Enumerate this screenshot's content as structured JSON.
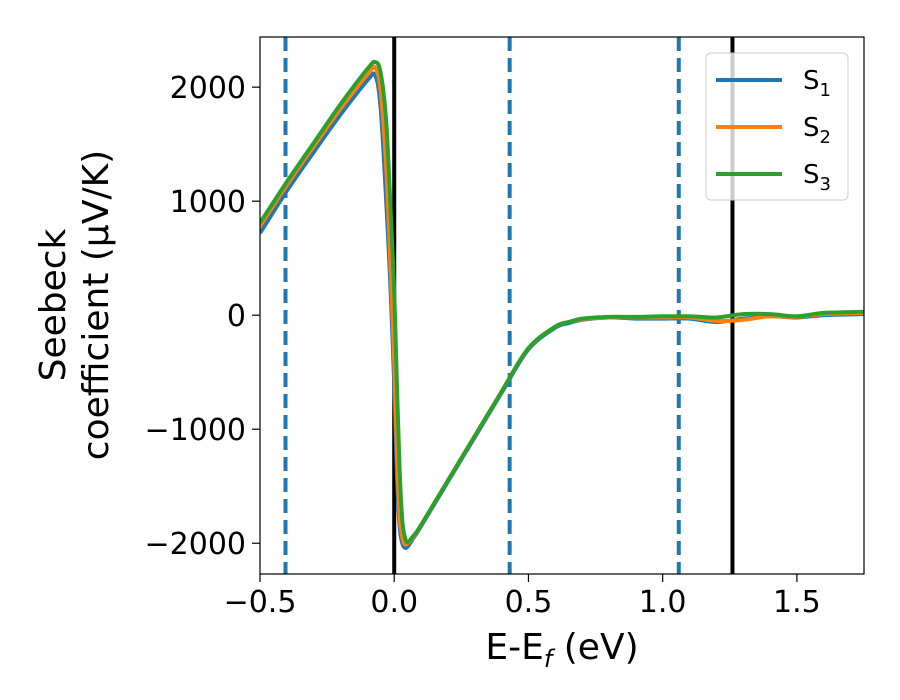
{
  "chart_data": {
    "type": "line",
    "xlabel_main": "E-E",
    "xlabel_sub": "f",
    "xlabel_unit": " (eV)",
    "ylabel_line1": "Seebeck",
    "ylabel_line2": "coefficient  (μV/K)",
    "xlim": [
      -0.5,
      1.75
    ],
    "ylim": [
      -2270,
      2440
    ],
    "xticks": [
      -0.5,
      0.0,
      0.5,
      1.0,
      1.5
    ],
    "xtick_labels": [
      "−0.5",
      "0.0",
      "0.5",
      "1.0",
      "1.5"
    ],
    "yticks": [
      2000,
      1000,
      0,
      -1000,
      -2000
    ],
    "ytick_labels": [
      "2000",
      "1000",
      "0",
      "−1000",
      "−2000"
    ],
    "vlines_solid": [
      0.0,
      1.26
    ],
    "vlines_dashed": [
      -0.405,
      0.43,
      1.06
    ],
    "legend_position": "top-right",
    "series": [
      {
        "name": "S",
        "subscript": "1",
        "color": "#1f77b4",
        "x": [
          -0.5,
          -0.4,
          -0.3,
          -0.2,
          -0.1,
          -0.07,
          -0.05,
          -0.03,
          -0.015,
          0.0,
          0.01,
          0.02,
          0.03,
          0.04,
          0.05,
          0.07,
          0.1,
          0.2,
          0.3,
          0.4,
          0.5,
          0.6,
          0.65,
          0.7,
          0.8,
          0.9,
          1.0,
          1.1,
          1.2,
          1.3,
          1.4,
          1.5,
          1.6,
          1.75
        ],
        "y": [
          720,
          1090,
          1430,
          1760,
          2060,
          2100,
          1800,
          1000,
          300,
          -600,
          -1400,
          -1850,
          -2000,
          -2040,
          -2030,
          -1960,
          -1850,
          -1460,
          -1070,
          -680,
          -300,
          -110,
          -70,
          -40,
          -20,
          -30,
          -30,
          -30,
          -60,
          -30,
          -10,
          -20,
          0,
          10
        ]
      },
      {
        "name": "S",
        "subscript": "2",
        "color": "#ff7f0e",
        "x": [
          -0.5,
          -0.4,
          -0.3,
          -0.2,
          -0.1,
          -0.07,
          -0.05,
          -0.03,
          -0.015,
          0.0,
          0.01,
          0.02,
          0.03,
          0.04,
          0.05,
          0.07,
          0.1,
          0.2,
          0.3,
          0.4,
          0.5,
          0.6,
          0.65,
          0.7,
          0.8,
          0.9,
          1.0,
          1.1,
          1.2,
          1.3,
          1.4,
          1.5,
          1.6,
          1.75
        ],
        "y": [
          780,
          1140,
          1480,
          1810,
          2110,
          2170,
          1950,
          1300,
          500,
          -400,
          -1200,
          -1750,
          -1950,
          -2010,
          -2000,
          -1950,
          -1840,
          -1450,
          -1060,
          -670,
          -290,
          -100,
          -60,
          -35,
          -20,
          -20,
          -20,
          -20,
          -50,
          -40,
          -10,
          -15,
          10,
          20
        ]
      },
      {
        "name": "S",
        "subscript": "3",
        "color": "#2ca02c",
        "x": [
          -0.5,
          -0.4,
          -0.3,
          -0.2,
          -0.1,
          -0.07,
          -0.05,
          -0.03,
          -0.015,
          0.0,
          0.01,
          0.02,
          0.03,
          0.04,
          0.05,
          0.07,
          0.1,
          0.2,
          0.3,
          0.4,
          0.5,
          0.6,
          0.65,
          0.7,
          0.8,
          0.9,
          1.0,
          1.1,
          1.2,
          1.3,
          1.4,
          1.5,
          1.6,
          1.75
        ],
        "y": [
          810,
          1170,
          1510,
          1850,
          2160,
          2220,
          2120,
          1700,
          1000,
          200,
          -600,
          -1350,
          -1800,
          -1950,
          -1990,
          -1940,
          -1840,
          -1450,
          -1060,
          -670,
          -290,
          -100,
          -60,
          -30,
          -15,
          -15,
          -10,
          -10,
          -20,
          10,
          10,
          -10,
          20,
          30
        ]
      }
    ]
  }
}
